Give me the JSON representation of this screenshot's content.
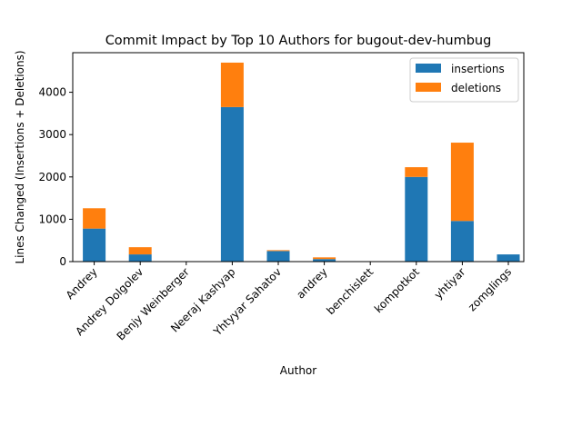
{
  "chart_data": {
    "type": "bar",
    "stacked": true,
    "title": "Commit Impact by Top 10 Authors for bugout-dev-humbug",
    "xlabel": "Author",
    "ylabel": "Lines Changed (Insertions + Deletions)",
    "ylim": [
      0,
      4935
    ],
    "yticks": [
      0,
      1000,
      2000,
      3000,
      4000
    ],
    "legend_position": "top-right",
    "categories": [
      "Andrey",
      "Andrey Dolgolev",
      "Benjy Weinberger",
      "Neeraj Kashyap",
      "Yhtyyar Sahatov",
      "andrey",
      "benchislett",
      "kompotkot",
      "yhtiyar",
      "zomglings"
    ],
    "series": [
      {
        "name": "insertions",
        "color": "#1f77b4",
        "values": [
          780,
          170,
          0,
          3650,
          250,
          60,
          0,
          2000,
          960,
          170
        ]
      },
      {
        "name": "deletions",
        "color": "#ff7f0e",
        "values": [
          480,
          170,
          0,
          1050,
          20,
          40,
          0,
          230,
          1850,
          0
        ]
      }
    ]
  }
}
